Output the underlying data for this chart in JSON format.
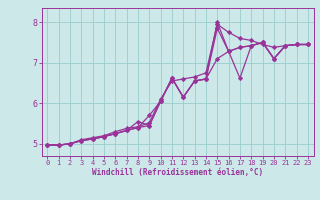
{
  "xlabel": "Windchill (Refroidissement éolien,°C)",
  "bg_color": "#cce8e8",
  "line_color": "#993399",
  "grid_color": "#99cccc",
  "xlim": [
    -0.5,
    23.5
  ],
  "ylim": [
    4.7,
    8.35
  ],
  "xticks": [
    0,
    1,
    2,
    3,
    4,
    5,
    6,
    7,
    8,
    9,
    10,
    11,
    12,
    13,
    14,
    15,
    16,
    17,
    18,
    19,
    20,
    21,
    22,
    23
  ],
  "yticks": [
    5,
    6,
    7,
    8
  ],
  "series": [
    {
      "x": [
        0,
        1,
        2,
        3,
        4,
        5,
        6,
        7,
        8,
        9,
        10,
        11,
        12,
        13,
        14,
        15,
        16,
        17,
        18,
        19,
        20,
        21,
        22,
        23
      ],
      "y": [
        4.97,
        4.97,
        5.0,
        5.08,
        5.12,
        5.18,
        5.25,
        5.33,
        5.4,
        5.45,
        6.05,
        6.62,
        6.15,
        6.55,
        6.6,
        7.85,
        7.28,
        7.38,
        7.42,
        7.5,
        7.1,
        7.42,
        7.45,
        7.45
      ]
    },
    {
      "x": [
        0,
        1,
        2,
        3,
        4,
        5,
        6,
        7,
        8,
        9,
        10,
        11,
        12,
        13,
        14,
        15,
        16,
        17,
        18,
        19,
        20,
        21,
        22,
        23
      ],
      "y": [
        4.97,
        4.97,
        5.0,
        5.08,
        5.12,
        5.18,
        5.25,
        5.33,
        5.4,
        5.7,
        6.05,
        6.62,
        6.15,
        6.55,
        6.6,
        7.1,
        7.28,
        6.62,
        7.42,
        7.5,
        7.1,
        7.42,
        7.45,
        7.45
      ]
    },
    {
      "x": [
        0,
        1,
        2,
        3,
        4,
        5,
        6,
        7,
        8,
        9,
        10,
        11,
        12,
        13,
        14,
        15,
        16,
        17,
        18,
        19,
        20,
        21,
        22,
        23
      ],
      "y": [
        4.97,
        4.97,
        5.0,
        5.08,
        5.12,
        5.18,
        5.25,
        5.33,
        5.55,
        5.45,
        6.05,
        6.62,
        6.15,
        6.55,
        6.6,
        8.0,
        7.28,
        7.38,
        7.42,
        7.5,
        7.1,
        7.42,
        7.45,
        7.45
      ]
    },
    {
      "x": [
        0,
        1,
        2,
        3,
        4,
        5,
        6,
        7,
        8,
        9,
        10,
        11,
        12,
        13,
        14,
        15,
        16,
        17,
        18,
        19,
        20,
        21,
        22,
        23
      ],
      "y": [
        4.97,
        4.97,
        5.0,
        5.1,
        5.15,
        5.2,
        5.3,
        5.38,
        5.42,
        5.52,
        6.1,
        6.55,
        6.6,
        6.65,
        6.75,
        7.95,
        7.75,
        7.6,
        7.55,
        7.45,
        7.38,
        7.42,
        7.45,
        7.45
      ]
    }
  ],
  "xlabel_fontsize": 5.5,
  "tick_fontsize": 5.0,
  "ytick_fontsize": 6.0,
  "linewidth": 0.9,
  "markersize": 2.2
}
